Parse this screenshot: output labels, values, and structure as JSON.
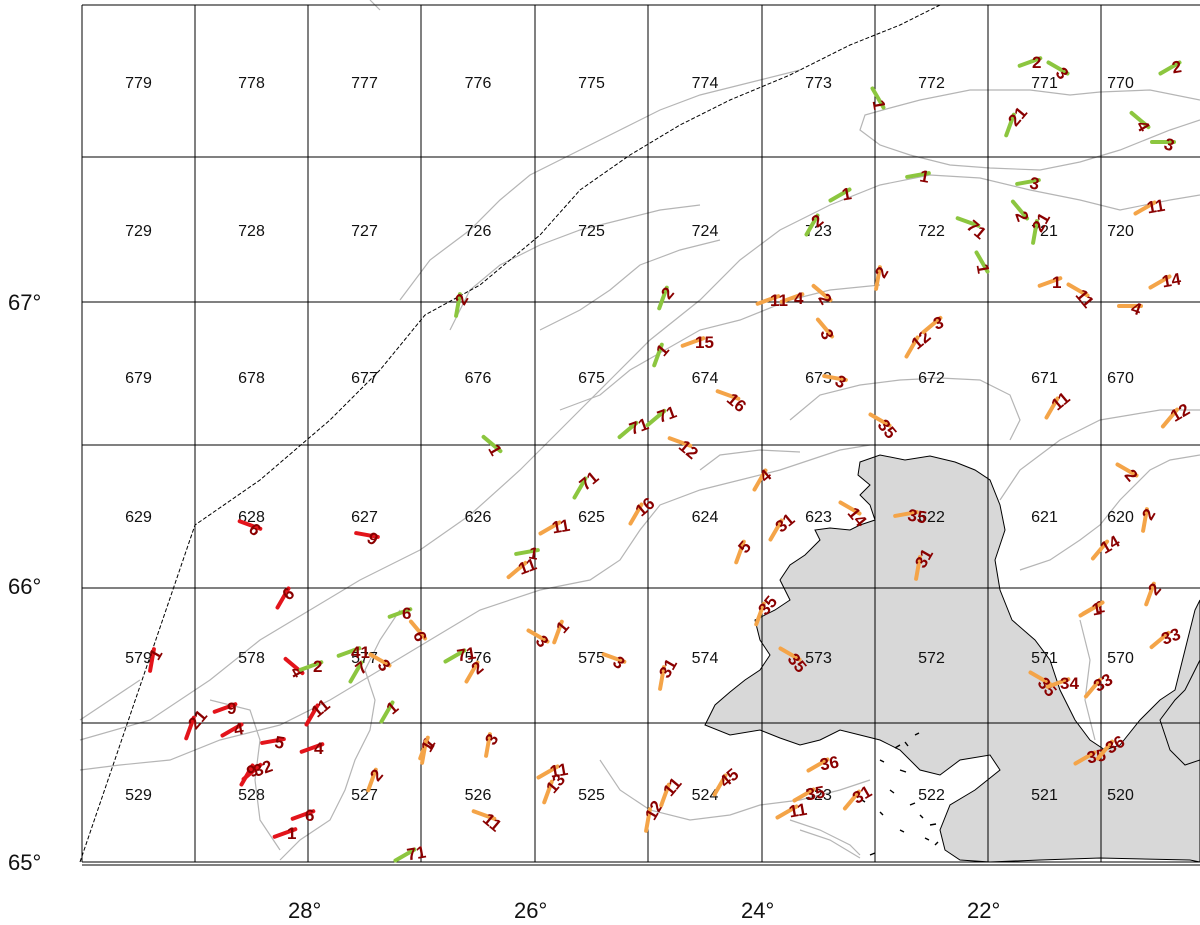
{
  "map": {
    "lat_labels": [
      "67°",
      "66°",
      "65°"
    ],
    "lon_labels": [
      "28°",
      "26°",
      "24°",
      "22°"
    ],
    "cells": [
      [
        "779",
        "778",
        "777",
        "776",
        "775",
        "774",
        "773",
        "772",
        "771",
        "770"
      ],
      [
        "729",
        "728",
        "727",
        "726",
        "725",
        "724",
        "723",
        "722",
        "721",
        "720"
      ],
      [
        "679",
        "678",
        "677",
        "676",
        "675",
        "674",
        "673",
        "672",
        "671",
        "670"
      ],
      [
        "629",
        "628",
        "627",
        "626",
        "625",
        "624",
        "623",
        "622",
        "621",
        "620"
      ],
      [
        "579",
        "578",
        "577",
        "576",
        "575",
        "574",
        "573",
        "572",
        "571",
        "570"
      ],
      [
        "529",
        "528",
        "527",
        "526",
        "525",
        "524",
        "523",
        "522",
        "521",
        "520"
      ]
    ],
    "colors": {
      "land": "#d8d8d8",
      "red": "#e3141b",
      "orange": "#f4a448",
      "green": "#8cc63f",
      "label": "#8a0000"
    },
    "ticks": [
      {
        "color": "green",
        "label": "2"
      },
      {
        "color": "green",
        "label": "3"
      },
      {
        "color": "green",
        "label": "2"
      },
      {
        "color": "green",
        "label": "1"
      },
      {
        "color": "green",
        "label": "21"
      },
      {
        "color": "green",
        "label": "4"
      },
      {
        "color": "green",
        "label": "3"
      },
      {
        "color": "green",
        "label": "1"
      },
      {
        "color": "green",
        "label": "1"
      },
      {
        "color": "green",
        "label": "3"
      },
      {
        "color": "green",
        "label": "2"
      },
      {
        "color": "green",
        "label": "71"
      },
      {
        "color": "green",
        "label": "21"
      },
      {
        "color": "orange",
        "label": "11"
      },
      {
        "color": "green",
        "label": "2"
      },
      {
        "color": "green",
        "label": "2"
      },
      {
        "color": "green",
        "label": "1"
      },
      {
        "color": "green",
        "label": "2"
      },
      {
        "color": "orange",
        "label": "2"
      },
      {
        "color": "orange",
        "label": "1"
      },
      {
        "color": "orange",
        "label": "4"
      },
      {
        "color": "orange",
        "label": "11"
      },
      {
        "color": "orange",
        "label": "14"
      },
      {
        "color": "orange",
        "label": "11"
      },
      {
        "color": "orange",
        "label": "4"
      },
      {
        "color": "orange",
        "label": "2"
      },
      {
        "color": "orange",
        "label": "3"
      },
      {
        "color": "orange",
        "label": "12"
      },
      {
        "color": "orange",
        "label": "3"
      },
      {
        "color": "orange",
        "label": "15"
      },
      {
        "color": "green",
        "label": "1"
      },
      {
        "color": "orange",
        "label": "16"
      },
      {
        "color": "orange",
        "label": "3"
      },
      {
        "color": "orange",
        "label": "35"
      },
      {
        "color": "orange",
        "label": "11"
      },
      {
        "color": "orange",
        "label": "12"
      },
      {
        "color": "green",
        "label": "71"
      },
      {
        "color": "green",
        "label": "71"
      },
      {
        "color": "orange",
        "label": "12"
      },
      {
        "color": "green",
        "label": "1"
      },
      {
        "color": "green",
        "label": "71"
      },
      {
        "color": "orange",
        "label": "16"
      },
      {
        "color": "green",
        "label": "1"
      },
      {
        "color": "orange",
        "label": "11"
      },
      {
        "color": "orange",
        "label": "4"
      },
      {
        "color": "orange",
        "label": "31"
      },
      {
        "color": "orange",
        "label": "14"
      },
      {
        "color": "orange",
        "label": "35"
      },
      {
        "color": "orange",
        "label": "2"
      },
      {
        "color": "orange",
        "label": "2"
      },
      {
        "color": "red",
        "label": "6"
      },
      {
        "color": "red",
        "label": "9"
      },
      {
        "color": "orange",
        "label": "11"
      },
      {
        "color": "orange",
        "label": "5"
      },
      {
        "color": "orange",
        "label": "14"
      },
      {
        "color": "orange",
        "label": "31"
      },
      {
        "color": "orange",
        "label": "1"
      },
      {
        "color": "orange",
        "label": "2"
      },
      {
        "color": "orange",
        "label": "35"
      },
      {
        "color": "green",
        "label": "6"
      },
      {
        "color": "orange",
        "label": "6"
      },
      {
        "color": "orange",
        "label": "3"
      },
      {
        "color": "orange",
        "label": "1"
      },
      {
        "color": "orange",
        "label": "35"
      },
      {
        "color": "red",
        "label": "6"
      },
      {
        "color": "green",
        "label": "71"
      },
      {
        "color": "orange",
        "label": "2"
      },
      {
        "color": "orange",
        "label": "3"
      },
      {
        "color": "orange",
        "label": "31"
      },
      {
        "color": "orange",
        "label": "1"
      },
      {
        "color": "orange",
        "label": "35"
      },
      {
        "color": "orange",
        "label": "34"
      },
      {
        "color": "orange",
        "label": "33"
      },
      {
        "color": "orange",
        "label": "33"
      },
      {
        "color": "red",
        "label": "1"
      },
      {
        "color": "red",
        "label": "4"
      },
      {
        "color": "green",
        "label": "2"
      },
      {
        "color": "green",
        "label": "41"
      },
      {
        "color": "green",
        "label": "7"
      },
      {
        "color": "orange",
        "label": "3"
      },
      {
        "color": "red",
        "label": "21"
      },
      {
        "color": "red",
        "label": "9"
      },
      {
        "color": "red",
        "label": "4"
      },
      {
        "color": "red",
        "label": "11"
      },
      {
        "color": "red",
        "label": "5"
      },
      {
        "color": "red",
        "label": "4"
      },
      {
        "color": "green",
        "label": "1"
      },
      {
        "color": "orange",
        "label": "1"
      },
      {
        "color": "orange",
        "label": "3"
      },
      {
        "color": "orange",
        "label": "35"
      },
      {
        "color": "orange",
        "label": "36"
      },
      {
        "color": "red",
        "label": "32"
      },
      {
        "color": "red",
        "label": "9"
      },
      {
        "color": "orange",
        "label": "2"
      },
      {
        "color": "orange",
        "label": "11"
      },
      {
        "color": "orange",
        "label": "13"
      },
      {
        "color": "orange",
        "label": "11"
      },
      {
        "color": "orange",
        "label": "12"
      },
      {
        "color": "orange",
        "label": "11"
      },
      {
        "color": "orange",
        "label": "45"
      },
      {
        "color": "orange",
        "label": "36"
      },
      {
        "color": "orange",
        "label": "11"
      },
      {
        "color": "orange",
        "label": "35"
      },
      {
        "color": "orange",
        "label": "31"
      },
      {
        "color": "red",
        "label": "6"
      },
      {
        "color": "red",
        "label": "1"
      },
      {
        "color": "green",
        "label": "71"
      },
      {
        "color": "orange",
        "label": "1"
      }
    ]
  }
}
